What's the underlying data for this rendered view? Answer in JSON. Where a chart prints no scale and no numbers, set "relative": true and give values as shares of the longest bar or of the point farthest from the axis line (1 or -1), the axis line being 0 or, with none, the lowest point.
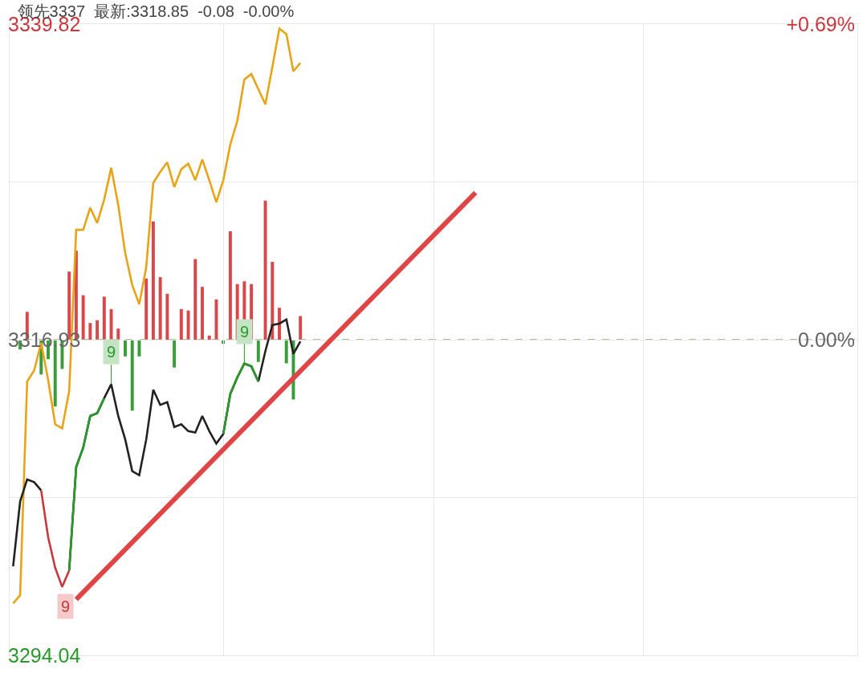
{
  "chart_data": [
    {
      "type": "line",
      "title": "领先3337  最新:3318.85  -0.08  -0.00%",
      "categories": [
        null,
        null,
        null,
        null,
        null,
        null,
        null,
        null,
        null,
        null,
        null,
        null,
        null,
        null,
        null,
        null,
        null,
        null,
        null,
        null,
        null,
        null,
        null,
        null,
        null,
        null,
        null,
        null,
        null,
        null,
        null,
        null,
        null,
        null,
        null,
        null,
        null,
        null,
        null,
        null,
        null,
        null,
        null,
        null,
        null,
        null,
        null,
        null,
        null,
        null,
        null,
        null,
        null,
        null,
        null,
        null,
        null,
        null,
        null,
        null,
        null,
        null,
        null,
        null,
        null,
        null,
        null,
        null,
        null,
        null,
        null,
        null,
        null,
        null,
        null,
        null,
        null,
        null,
        null,
        null,
        null,
        null,
        null,
        null,
        null,
        null,
        null,
        null,
        null,
        null,
        null,
        null,
        null,
        null,
        null,
        null,
        null,
        null,
        null,
        null,
        null,
        null,
        null,
        null,
        null,
        null,
        null,
        null,
        null,
        null,
        null,
        null,
        null,
        null,
        null,
        null,
        null,
        null,
        null,
        null,
        null
      ],
      "series": [
        {
          "color": "#e8a418",
          "values": [
            3297.8,
            3298.4,
            3313.9,
            3314.7,
            3316.7,
            3314.0,
            3310.8,
            3310.5,
            3313.2,
            3324.9,
            3324.9,
            3326.5,
            3325.4,
            3327.1,
            3329.4,
            3326.7,
            3323.2,
            3320.9,
            3319.5,
            3322.2,
            3328.3,
            3329.1,
            3329.8,
            3328.0,
            3329.3,
            3329.7,
            3328.5,
            3330.0,
            3328.5,
            3326.9,
            3328.5,
            3331.1,
            3332.8,
            3335.8,
            3336.2,
            3335.1,
            3334.0,
            3336.7,
            3339.5,
            3339.1,
            3336.4,
            3337.0,
            null,
            null,
            null,
            null,
            null,
            null,
            null,
            null,
            null,
            null,
            null,
            null,
            null,
            null,
            null,
            null,
            null,
            null,
            null,
            null,
            null,
            null,
            null,
            null,
            null,
            null,
            null,
            null,
            null,
            null,
            null,
            null,
            null,
            null,
            null,
            null,
            null,
            null,
            null,
            null,
            null,
            null,
            null,
            null,
            null,
            null,
            null,
            null,
            null,
            null,
            null,
            null,
            null,
            null,
            null,
            null,
            null,
            null,
            null,
            null,
            null,
            null,
            null,
            null,
            null,
            null,
            null,
            null,
            null,
            null,
            null,
            null,
            null,
            null,
            null,
            null,
            null,
            null,
            null
          ]
        },
        {
          "color": "#222222",
          "values": [
            3300.5,
            3305.2,
            3306.8,
            3306.6,
            3306.0,
            null,
            null,
            null,
            3300.2,
            3307.7,
            3309.1,
            3311.4,
            3311.6,
            3312.7,
            3313.7,
            3311.4,
            3309.7,
            3307.4,
            3307.1,
            3309.7,
            3313.3,
            3312.2,
            3312.4,
            3310.6,
            3310.8,
            3310.3,
            3310.2,
            3311.4,
            3310.3,
            3309.4,
            3310.1,
            3313.0,
            3314.2,
            3315.2,
            3315.0,
            3313.9,
            3316.1,
            3318.0,
            3318.1,
            3318.4,
            3315.9,
            3316.8,
            null,
            null,
            null,
            null,
            null,
            null,
            null,
            null,
            null,
            null,
            null,
            null,
            null,
            null,
            null,
            null,
            null,
            null,
            null,
            null,
            null,
            null,
            null,
            null,
            null,
            null,
            null,
            null,
            null,
            null,
            null,
            null,
            null,
            null,
            null,
            null,
            null,
            null,
            null,
            null,
            null,
            null,
            null,
            null,
            null,
            null,
            null,
            null,
            null,
            null,
            null,
            null,
            null,
            null,
            null,
            null,
            null,
            null,
            null,
            null,
            null,
            null,
            null,
            null,
            null,
            null,
            null,
            null,
            null,
            null,
            null,
            null,
            null,
            null,
            null,
            null,
            null,
            null,
            null
          ]
        },
        {
          "color": "#c8383c",
          "values": [
            null,
            null,
            null,
            null,
            3306.0,
            3302.6,
            3300.4,
            3299.0,
            3300.2,
            null,
            null,
            null,
            null,
            null,
            null,
            null,
            null,
            null,
            null,
            null,
            null,
            null,
            null,
            null,
            null,
            null,
            null,
            null,
            null,
            null,
            null,
            null,
            null,
            null,
            null,
            null,
            null,
            null,
            null,
            null,
            null,
            null,
            null,
            null,
            null,
            null,
            null,
            null,
            null,
            null,
            null,
            null,
            null,
            null,
            null,
            null,
            null,
            null,
            null,
            null,
            null,
            null,
            null,
            null,
            null,
            null,
            null,
            null,
            null,
            null,
            null,
            null,
            null,
            null,
            null,
            null,
            null,
            null,
            null,
            null,
            null,
            null,
            null,
            null,
            null,
            null,
            null,
            null,
            null,
            null,
            null,
            null,
            null,
            null,
            null,
            null,
            null,
            null,
            null,
            null,
            null,
            null,
            null,
            null,
            null,
            null,
            null,
            null,
            null,
            null,
            null,
            null,
            null,
            null,
            null,
            null,
            null,
            null,
            null,
            null,
            null
          ]
        },
        {
          "color": "#2a9a2a",
          "values": [
            null,
            null,
            null,
            null,
            null,
            null,
            null,
            null,
            3300.2,
            3307.7,
            3309.1,
            3311.4,
            3311.6,
            3312.7,
            null,
            null,
            null,
            null,
            null,
            null,
            null,
            null,
            null,
            null,
            null,
            null,
            null,
            null,
            null,
            null,
            3310.1,
            3313.0,
            3314.2,
            3315.2,
            3315.0,
            3313.9,
            null,
            null,
            null,
            null,
            null,
            null,
            null,
            null,
            null,
            null,
            null,
            null,
            null,
            null,
            null,
            null,
            null,
            null,
            null,
            null,
            null,
            null,
            null,
            null,
            null,
            null,
            null,
            null,
            null,
            null,
            null,
            null,
            null,
            null,
            null,
            null,
            null,
            null,
            null,
            null,
            null,
            null,
            null,
            null,
            null,
            null,
            null,
            null,
            null,
            null,
            null,
            null,
            null,
            null,
            null,
            null,
            null,
            null,
            null,
            null,
            null,
            null,
            null,
            null,
            null,
            null,
            null,
            null,
            null,
            null,
            null,
            null,
            null,
            null,
            null,
            null,
            null,
            null,
            null,
            null,
            null,
            null,
            null,
            null,
            null
          ]
        },
        {
          "color": "#e04545",
          "values": [
            null,
            null,
            null,
            null,
            null,
            null,
            null,
            null,
            null,
            3298.1,
            null,
            null,
            null,
            null,
            null,
            null,
            null,
            null,
            null,
            null,
            null,
            null,
            null,
            null,
            null,
            null,
            null,
            null,
            null,
            null,
            null,
            null,
            null,
            null,
            null,
            null,
            null,
            null,
            null,
            null,
            null,
            null,
            null,
            null,
            null,
            null,
            null,
            null,
            null,
            null,
            null,
            null,
            null,
            null,
            null,
            null,
            null,
            null,
            null,
            null,
            null,
            null,
            null,
            null,
            null,
            null,
            3327.6,
            null,
            null,
            null,
            null,
            null,
            null,
            null,
            null,
            null,
            null,
            null,
            null,
            null,
            null,
            null,
            null,
            null,
            null,
            null,
            null,
            null,
            null,
            null,
            null,
            null,
            null,
            null,
            null,
            null,
            null,
            null,
            null,
            null,
            null,
            null,
            null,
            null,
            null,
            null,
            null,
            null,
            null,
            null,
            null,
            null,
            null,
            null,
            null,
            null,
            null,
            null,
            null,
            null,
            null
          ]
        }
      ],
      "annotations": [
        {
          "text": "9",
          "y": 3299.0
        },
        {
          "text": "9",
          "y": 3313.7
        },
        {
          "text": "9",
          "y": 3315.2
        }
      ],
      "ylim": [
        3294.04,
        3339.82
      ],
      "yticks": [
        3294.04,
        {
          "value": 3305.485,
          "label": null
        },
        3316.93,
        {
          "value": 3328.375,
          "label": null
        },
        3339.82
      ],
      "y2lim": [
        -0.69,
        0.69
      ],
      "y2ticks": [
        {
          "value": 0,
          "label": "0.00%"
        },
        {
          "value": 0.69,
          "label": "+0.69%"
        }
      ],
      "ref_lines": [
        {
          "axis": "y",
          "value": 3316.93,
          "color": "#a8a47c",
          "line_style": "dashed"
        }
      ],
      "grid": true,
      "tick_labels": "y"
    },
    {
      "type": "bar",
      "relative": true,
      "categories": [
        null,
        null,
        null,
        null,
        null,
        null,
        null,
        null,
        null,
        null,
        null,
        null,
        null,
        null,
        null,
        null,
        null,
        null,
        null,
        null,
        null,
        null,
        null,
        null,
        null,
        null,
        null,
        null,
        null,
        null,
        null,
        null,
        null,
        null,
        null,
        null,
        null,
        null,
        null,
        null,
        null,
        null,
        null,
        null,
        null,
        null,
        null,
        null,
        null,
        null,
        null,
        null,
        null,
        null,
        null,
        null,
        null,
        null,
        null,
        null,
        null,
        null,
        null,
        null,
        null,
        null,
        null,
        null,
        null,
        null,
        null,
        null,
        null,
        null,
        null,
        null,
        null,
        null,
        null,
        null,
        null,
        null,
        null,
        null,
        null,
        null,
        null,
        null,
        null,
        null,
        null,
        null,
        null,
        null,
        null,
        null,
        null,
        null,
        null,
        null,
        null,
        null,
        null,
        null,
        null,
        null,
        null,
        null,
        null,
        null,
        null,
        null,
        null,
        null,
        null,
        null,
        null,
        null,
        null,
        null,
        null
      ],
      "values": [
        null,
        -0.07,
        0.2,
        null,
        -0.25,
        -0.14,
        -0.48,
        -0.21,
        0.49,
        0.64,
        0.32,
        0.12,
        0.14,
        0.31,
        0.22,
        0.08,
        -0.12,
        -0.51,
        -0.12,
        0.44,
        0.85,
        0.45,
        0.33,
        -0.2,
        0.22,
        0.21,
        0.58,
        0.38,
        0.03,
        0.29,
        -0.03,
        0.78,
        0.4,
        0.42,
        0.4,
        -0.16,
        1,
        0.56,
        0.23,
        -0.17,
        -0.43,
        0.17,
        null,
        null,
        null,
        null,
        null,
        null,
        null,
        null,
        null,
        null,
        null,
        null,
        null,
        null,
        null,
        null,
        null,
        null,
        null,
        null,
        null,
        null,
        null,
        null,
        null,
        null,
        null,
        null,
        null,
        null,
        null,
        null,
        null,
        null,
        null,
        null,
        null,
        null,
        null,
        null,
        null,
        null,
        null,
        null,
        null,
        null,
        null,
        null,
        null,
        null,
        null,
        null,
        null,
        null,
        null,
        null,
        null,
        null,
        null,
        null,
        null,
        null,
        null,
        null,
        null,
        null,
        null,
        null,
        null,
        null,
        null,
        null,
        null,
        null,
        null,
        null,
        null,
        null,
        null
      ],
      "colors": [
        "#d9474a",
        "#3a9c3a",
        "#d9474a",
        "#d9474a",
        "#3a9c3a",
        "#3a9c3a",
        "#3a9c3a",
        "#3a9c3a",
        "#d9474a",
        "#d9474a",
        "#d9474a",
        "#d9474a",
        "#d9474a",
        "#d9474a",
        "#d9474a",
        "#d9474a",
        "#3a9c3a",
        "#3a9c3a",
        "#3a9c3a",
        "#d9474a",
        "#d9474a",
        "#d9474a",
        "#d9474a",
        "#3a9c3a",
        "#d9474a",
        "#d9474a",
        "#d9474a",
        "#d9474a",
        "#d9474a",
        "#d9474a",
        "#3a9c3a",
        "#d9474a",
        "#d9474a",
        "#d9474a",
        "#d9474a",
        "#3a9c3a",
        "#d9474a",
        "#d9474a",
        "#d9474a",
        "#3a9c3a",
        "#3a9c3a",
        "#d9474a",
        null,
        null,
        null,
        null,
        null,
        null,
        null,
        null,
        null,
        null,
        null,
        null,
        null,
        null,
        null,
        null,
        null,
        null,
        null,
        null,
        null,
        null,
        null,
        null,
        null,
        null,
        null,
        null,
        null,
        null,
        null,
        null,
        null,
        null,
        null,
        null,
        null,
        null,
        null,
        null,
        null,
        null,
        null,
        null,
        null,
        null,
        null,
        null,
        null,
        null,
        null,
        null,
        null,
        null,
        null,
        null,
        null,
        null,
        null,
        null,
        null,
        null,
        null,
        null,
        null,
        null,
        null,
        null,
        null,
        null,
        null,
        null,
        null,
        null,
        null,
        null,
        null,
        null,
        null
      ],
      "tick_labels": false
    }
  ]
}
